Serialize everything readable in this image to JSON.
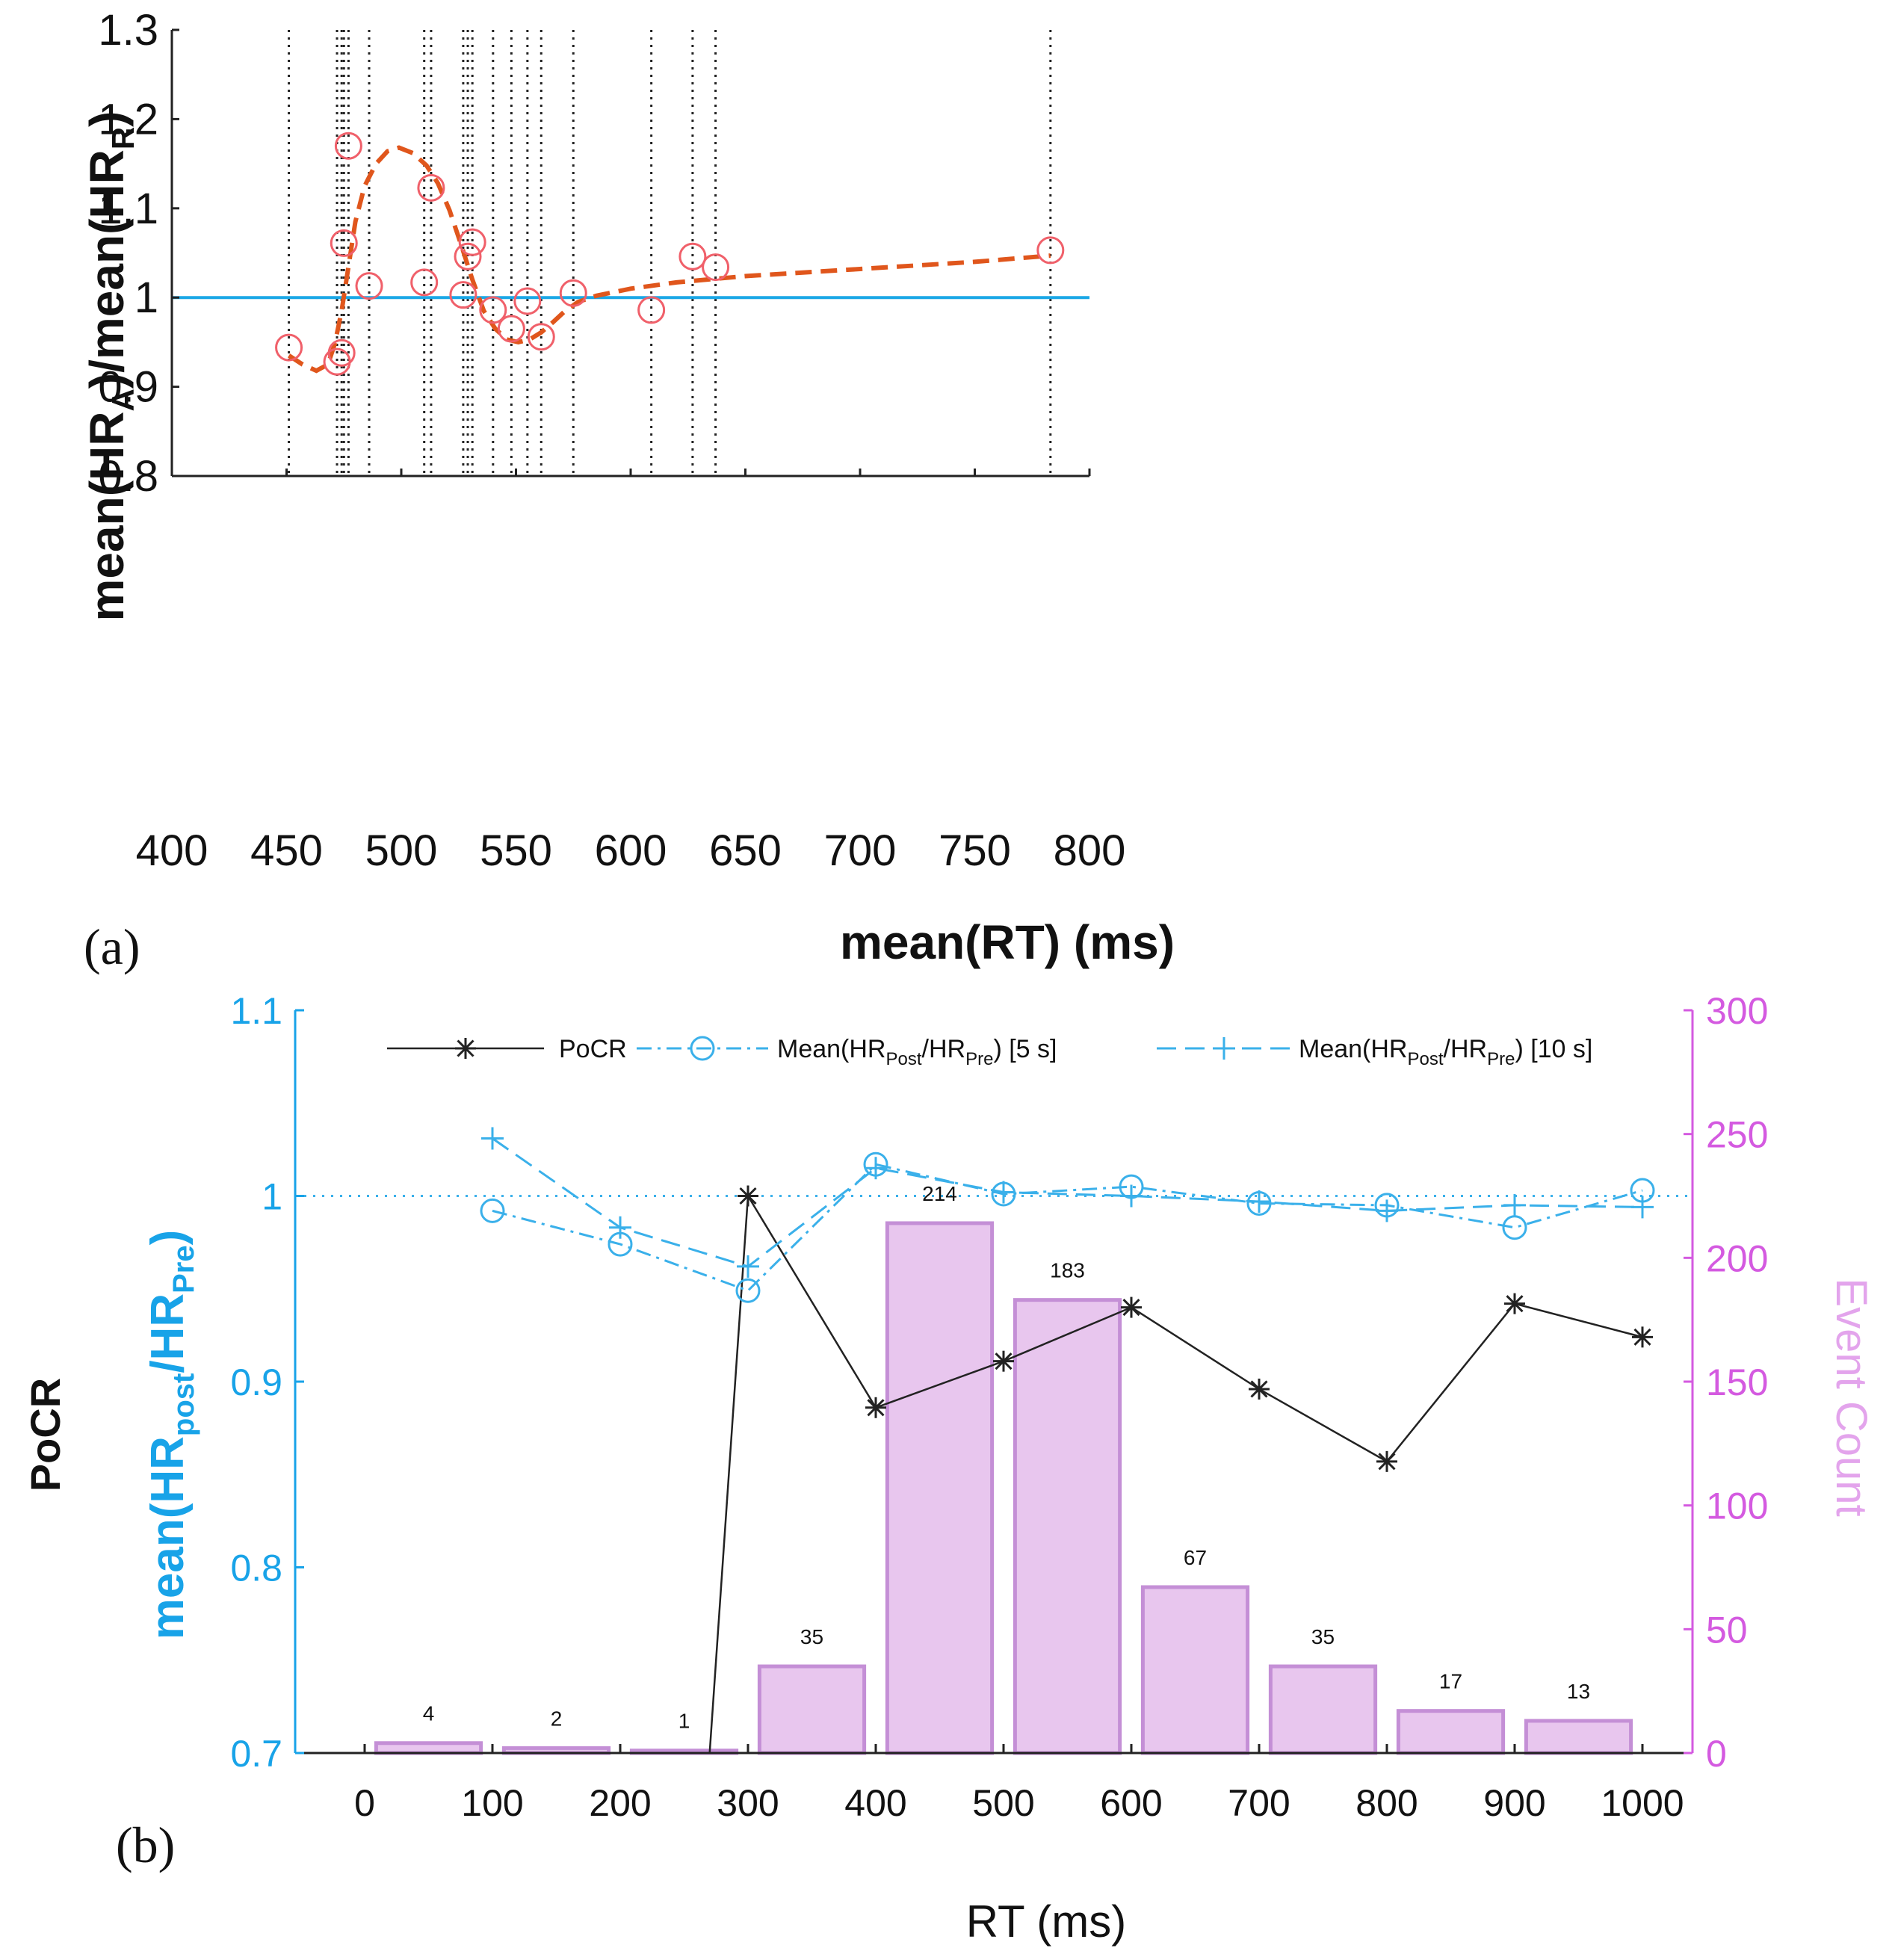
{
  "chart_data": [
    {
      "panel_label": "(a)",
      "type": "scatter",
      "xlabel": "mean(RT) (ms)",
      "ylabel": {
        "pre": "mean(HR",
        "sub1": "A",
        "mid": ")/mean(HR",
        "sub2": "R",
        "post": ")"
      },
      "xlim": [
        400,
        800
      ],
      "ylim": [
        0.8,
        1.3
      ],
      "x_ticks": [
        400,
        450,
        500,
        550,
        600,
        650,
        700,
        750,
        800
      ],
      "y_ticks": [
        0.8,
        0.9,
        1,
        1.1,
        1.2,
        1.3
      ],
      "y_tick_labels": [
        "0.8",
        "0.9",
        "1",
        "1.1",
        "1.2",
        "1.3"
      ],
      "reference_line": 1.0,
      "points": [
        {
          "x": 451,
          "y": 0.944
        },
        {
          "x": 472,
          "y": 0.928
        },
        {
          "x": 474,
          "y": 0.938
        },
        {
          "x": 475,
          "y": 1.061
        },
        {
          "x": 477,
          "y": 1.17
        },
        {
          "x": 486,
          "y": 1.013
        },
        {
          "x": 510,
          "y": 1.017
        },
        {
          "x": 513,
          "y": 1.123
        },
        {
          "x": 527,
          "y": 1.003
        },
        {
          "x": 529,
          "y": 1.046
        },
        {
          "x": 531,
          "y": 1.062
        },
        {
          "x": 540,
          "y": 0.986
        },
        {
          "x": 548,
          "y": 0.965
        },
        {
          "x": 555,
          "y": 0.996
        },
        {
          "x": 561,
          "y": 0.956
        },
        {
          "x": 575,
          "y": 1.005
        },
        {
          "x": 609,
          "y": 0.986
        },
        {
          "x": 627,
          "y": 1.046
        },
        {
          "x": 637,
          "y": 1.034
        },
        {
          "x": 783,
          "y": 1.053
        }
      ],
      "vertical_lines": [
        451,
        472,
        474,
        475,
        477,
        486,
        510,
        513,
        527,
        529,
        531,
        540,
        548,
        555,
        561,
        575,
        609,
        627,
        637,
        783
      ],
      "fit_curve": [
        [
          451,
          0.935
        ],
        [
          457,
          0.925
        ],
        [
          463,
          0.918
        ],
        [
          468,
          0.925
        ],
        [
          471,
          0.948
        ],
        [
          474,
          0.985
        ],
        [
          477,
          1.035
        ],
        [
          480,
          1.085
        ],
        [
          484,
          1.125
        ],
        [
          489,
          1.15
        ],
        [
          494,
          1.164
        ],
        [
          499,
          1.168
        ],
        [
          505,
          1.162
        ],
        [
          511,
          1.148
        ],
        [
          516,
          1.128
        ],
        [
          521,
          1.098
        ],
        [
          526,
          1.06
        ],
        [
          531,
          1.02
        ],
        [
          536,
          0.985
        ],
        [
          541,
          0.965
        ],
        [
          546,
          0.953
        ],
        [
          551,
          0.95
        ],
        [
          556,
          0.953
        ],
        [
          561,
          0.961
        ],
        [
          566,
          0.972
        ],
        [
          571,
          0.984
        ],
        [
          577,
          0.995
        ],
        [
          585,
          1.002
        ],
        [
          600,
          1.01
        ],
        [
          620,
          1.017
        ],
        [
          650,
          1.024
        ],
        [
          700,
          1.032
        ],
        [
          750,
          1.04
        ],
        [
          783,
          1.047
        ]
      ],
      "colors": {
        "points": "#f0606a",
        "fit": "#e0561c",
        "reference": "#1aa7e6",
        "vlines": "#222222",
        "axes": "#222222"
      }
    },
    {
      "panel_label": "(b)",
      "type": "bar",
      "xlabel": "RT (ms)",
      "ylabel_left_outer": "PoCR",
      "ylabel_left": {
        "pre": "mean(HR",
        "sub1": "post",
        "mid": "/HR",
        "sub2": "Pre",
        "post": ")"
      },
      "ylabel_right": "Event Count",
      "xlim": [
        0,
        1000
      ],
      "x_ticks": [
        0,
        100,
        200,
        300,
        400,
        500,
        600,
        700,
        800,
        900,
        1000
      ],
      "y_left_lim": [
        0.7,
        1.1
      ],
      "y_left_ticks": [
        0.7,
        0.8,
        0.9,
        1,
        1.1
      ],
      "y_left_tick_labels": [
        "0.7",
        "0.8",
        "0.9",
        "1",
        "1.1"
      ],
      "y_right_lim": [
        0,
        300
      ],
      "y_right_ticks": [
        0,
        50,
        100,
        150,
        200,
        250,
        300
      ],
      "reference_line": 1.0,
      "bars": {
        "centers": [
          50,
          150,
          250,
          350,
          450,
          550,
          650,
          750,
          850,
          950
        ],
        "values": [
          4,
          2,
          1,
          35,
          214,
          183,
          67,
          35,
          17,
          13
        ],
        "labels": [
          "4",
          "2",
          "1",
          "35",
          "214",
          "183",
          "67",
          "35",
          "17",
          "13"
        ]
      },
      "series": [
        {
          "name": "PoCR",
          "style": "solid-star",
          "x": [
            300,
            400,
            500,
            600,
            700,
            800,
            900,
            1000
          ],
          "values": [
            1.0,
            0.886,
            0.911,
            0.94,
            0.896,
            0.857,
            0.942,
            0.924
          ],
          "left_start": {
            "x": 270,
            "y": 0.7
          }
        },
        {
          "name": "Mean(HR_Post/HR_Pre) [5 s]",
          "style": "dashdot-circle",
          "x": [
            100,
            200,
            300,
            400,
            500,
            600,
            700,
            800,
            900,
            1000
          ],
          "values": [
            0.992,
            0.974,
            0.949,
            1.017,
            1.001,
            1.005,
            0.996,
            0.995,
            0.983,
            1.003
          ]
        },
        {
          "name": "Mean(HR_Post/HR_Pre) [10 s]",
          "style": "dashed-plus",
          "x": [
            100,
            200,
            300,
            400,
            500,
            600,
            700,
            800,
            900,
            1000
          ],
          "values": [
            1.031,
            0.983,
            0.962,
            1.015,
            1.002,
            1.0,
            0.997,
            0.992,
            0.995,
            0.994
          ]
        }
      ],
      "legend": {
        "position": "top",
        "entries": [
          {
            "label": "PoCR"
          },
          {
            "pre": "Mean(HR",
            "sub1": "Post",
            "mid": "/HR",
            "sub2": "Pre",
            "post": ") [5 s]"
          },
          {
            "pre": "Mean(HR",
            "sub1": "Post",
            "mid": "/HR",
            "sub2": "Pre",
            "post": ") [10 s]"
          }
        ]
      },
      "colors": {
        "bar_fill": "#e8c6ee",
        "bar_edge": "#c48fd6",
        "right_axis": "#d45ae0",
        "right_label": "#e3a4ec",
        "left_axis": "#18a3e8",
        "pocr": "#222222",
        "hr": "#3ab0ea",
        "reference": "#3ab0ea",
        "axes": "#222222"
      }
    }
  ]
}
